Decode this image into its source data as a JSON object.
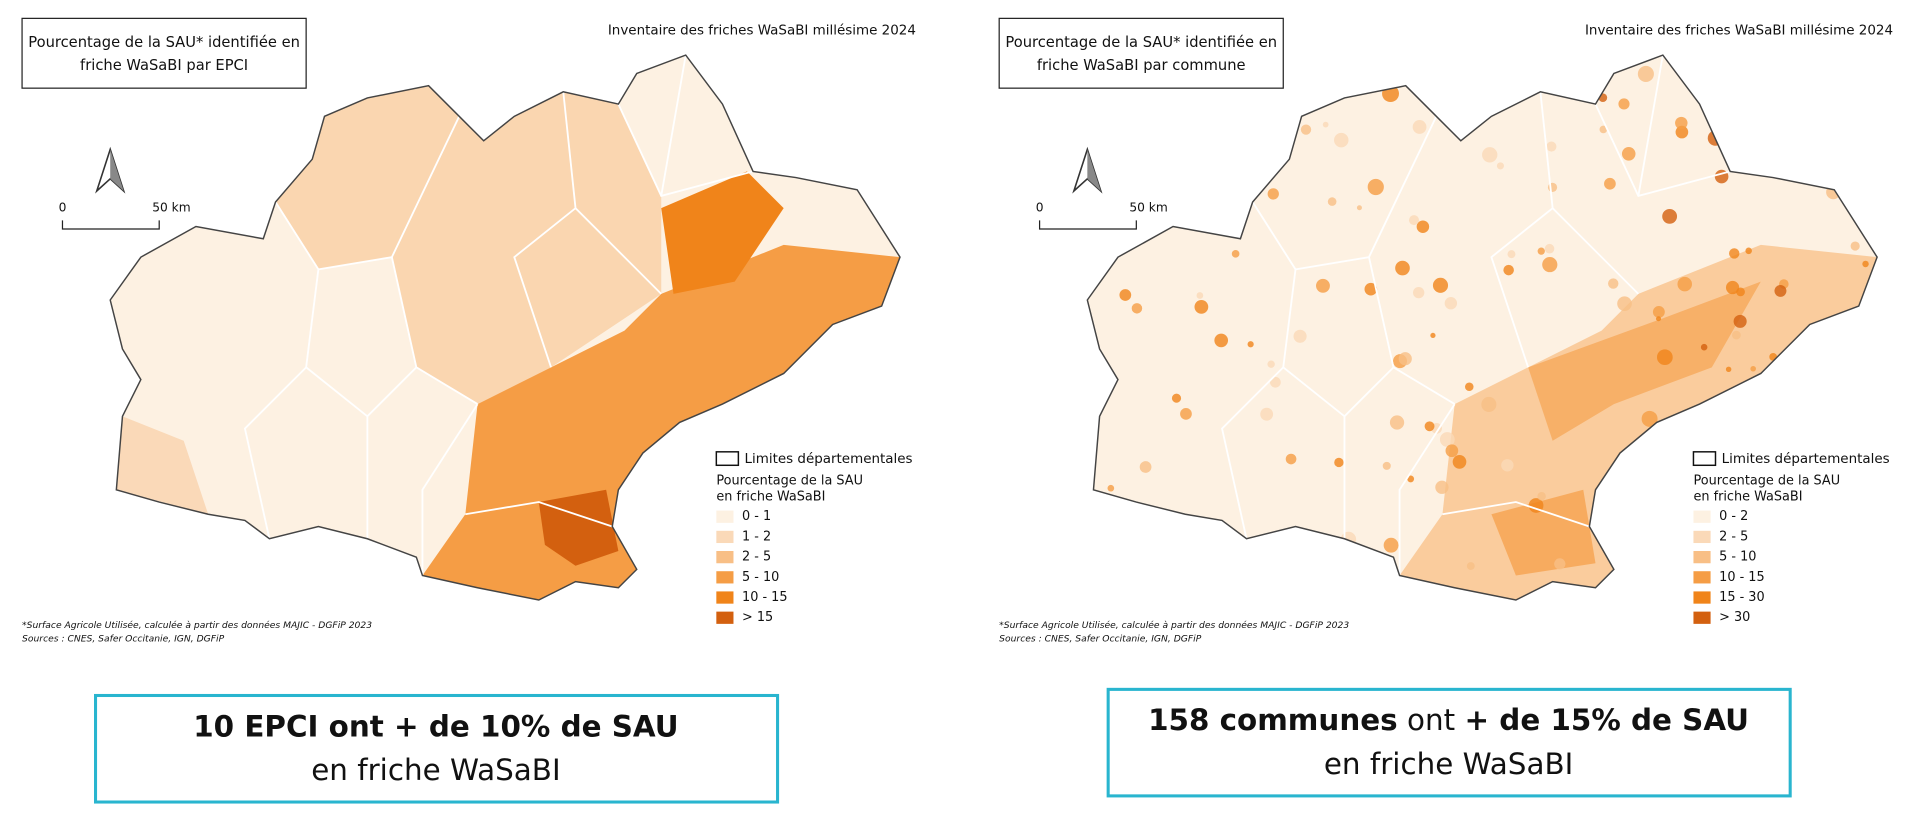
{
  "maps": [
    {
      "title_lines": [
        "Pourcentage de la SAU* identifiée en",
        "friche WaSaBI par EPCI"
      ],
      "edition": "Inventaire des friches WaSaBI millésime 2024",
      "scale": {
        "start": "0",
        "end": "50 km"
      },
      "legend": {
        "boundary": "Limites départementales",
        "title_lines": [
          "Pourcentage de la SAU",
          "en friche WaSaBI"
        ],
        "classes": [
          {
            "label": "0 - 1",
            "color": "#fdf1e2"
          },
          {
            "label": "1 - 2",
            "color": "#fad9b8"
          },
          {
            "label": "2 - 5",
            "color": "#f8bf86"
          },
          {
            "label": "5 - 10",
            "color": "#f59d45"
          },
          {
            "label": "10 - 15",
            "color": "#f0841a"
          },
          {
            "label": "> 15",
            "color": "#d3600f"
          }
        ]
      },
      "footnotes": [
        "*Surface Agricole Utilisée, calculée à partir des données MAJIC - DGFiP 2023",
        "Sources : CNES, Safer Occitanie, IGN, DGFiP"
      ],
      "callout": {
        "line1": [
          {
            "text": "10 EPCI ont + de 10% de SAU",
            "bold": true
          }
        ],
        "line2": "en friche WaSaBI"
      }
    },
    {
      "title_lines": [
        "Pourcentage de la SAU* identifiée en",
        "friche WaSaBI par commune"
      ],
      "edition": "Inventaire des friches WaSaBI millésime 2024",
      "scale": {
        "start": "0",
        "end": "50 km"
      },
      "legend": {
        "boundary": "Limites départementales",
        "title_lines": [
          "Pourcentage de la SAU",
          "en friche WaSaBI"
        ],
        "classes": [
          {
            "label": "0 - 2",
            "color": "#fdf1e2"
          },
          {
            "label": "2 - 5",
            "color": "#fad9b8"
          },
          {
            "label": "5 - 10",
            "color": "#f8bf86"
          },
          {
            "label": "10 - 15",
            "color": "#f59d45"
          },
          {
            "label": "15 - 30",
            "color": "#f0841a"
          },
          {
            "label": "> 30",
            "color": "#d3600f"
          }
        ]
      },
      "footnotes": [
        "*Surface Agricole Utilisée, calculée à partir des données MAJIC - DGFiP 2023",
        "Sources : CNES, Safer Occitanie, IGN, DGFiP"
      ],
      "callout": {
        "line1": [
          {
            "text": "158 communes",
            "bold": true
          },
          {
            "text": " ont ",
            "bold": false
          },
          {
            "text": "+ de 15% de SAU",
            "bold": true
          }
        ],
        "line2": "en friche WaSaBI"
      }
    }
  ]
}
